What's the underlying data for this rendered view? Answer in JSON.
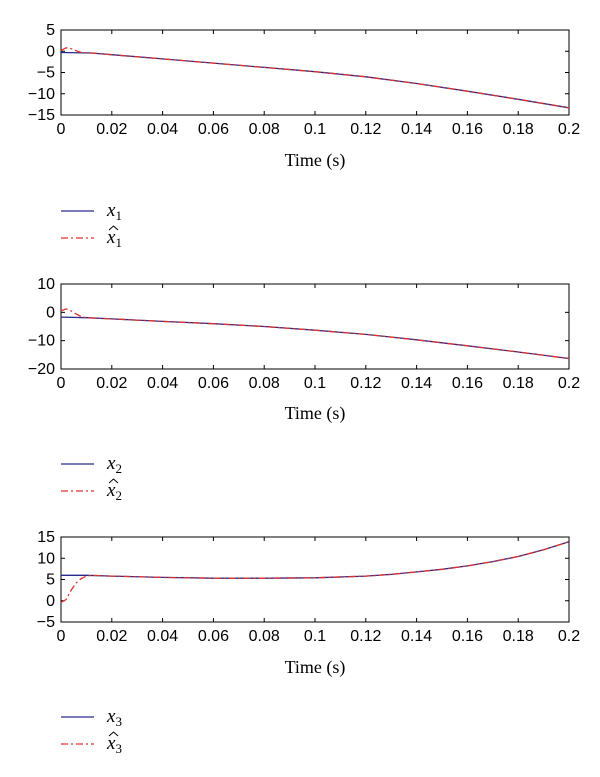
{
  "colors": {
    "true_state": "#2a2a8c",
    "estimate": "#e0302a",
    "axis": "#000000"
  },
  "chart_data": [
    {
      "type": "line",
      "xlabel": "Time (s)",
      "xlim": [
        0,
        0.2
      ],
      "ylim": [
        -15,
        5
      ],
      "xticks": [
        "0",
        "0.02",
        "0.04",
        "0.06",
        "0.08",
        "0.1",
        "0.12",
        "0.14",
        "0.16",
        "0.18",
        "0.2"
      ],
      "yticks": [
        "5",
        "0",
        "−5",
        "−10",
        "−15"
      ],
      "legend_placement": "below",
      "series": [
        {
          "name": "x",
          "subscript": "1",
          "hat": false,
          "style": "solid",
          "x": [
            0,
            0.012,
            0.02,
            0.04,
            0.06,
            0.08,
            0.1,
            0.12,
            0.14,
            0.16,
            0.18,
            0.2
          ],
          "y": [
            -0.3,
            -0.4,
            -0.8,
            -1.8,
            -2.8,
            -3.8,
            -4.8,
            -6.0,
            -7.6,
            -9.4,
            -11.3,
            -13.3
          ]
        },
        {
          "name": "x",
          "subscript": "1",
          "hat": true,
          "style": "dashdot",
          "x": [
            0,
            0.002,
            0.004,
            0.006,
            0.008,
            0.012,
            0.02,
            0.04,
            0.06,
            0.08,
            0.1,
            0.12,
            0.14,
            0.16,
            0.18,
            0.2
          ],
          "y": [
            0.2,
            0.8,
            0.6,
            0.1,
            -0.3,
            -0.4,
            -0.8,
            -1.8,
            -2.8,
            -3.8,
            -4.8,
            -6.0,
            -7.6,
            -9.4,
            -11.3,
            -13.3
          ]
        }
      ]
    },
    {
      "type": "line",
      "xlabel": "Time (s)",
      "xlim": [
        0,
        0.2
      ],
      "ylim": [
        -20,
        10
      ],
      "xticks": [
        "0",
        "0.02",
        "0.04",
        "0.06",
        "0.08",
        "0.1",
        "0.12",
        "0.14",
        "0.16",
        "0.18",
        "0.2"
      ],
      "yticks": [
        "10",
        "0",
        "−10",
        "−20"
      ],
      "legend_placement": "below",
      "series": [
        {
          "name": "x",
          "subscript": "2",
          "hat": false,
          "style": "solid",
          "x": [
            0,
            0.01,
            0.02,
            0.04,
            0.06,
            0.08,
            0.1,
            0.12,
            0.14,
            0.16,
            0.18,
            0.2
          ],
          "y": [
            -1.7,
            -1.9,
            -2.3,
            -3.2,
            -4.0,
            -5.0,
            -6.3,
            -7.8,
            -9.7,
            -11.8,
            -14.0,
            -16.3
          ]
        },
        {
          "name": "x",
          "subscript": "2",
          "hat": true,
          "style": "dashdot",
          "x": [
            0,
            0.002,
            0.004,
            0.006,
            0.008,
            0.01,
            0.02,
            0.04,
            0.06,
            0.08,
            0.1,
            0.12,
            0.14,
            0.16,
            0.18,
            0.2
          ],
          "y": [
            0.5,
            1.2,
            0.5,
            -0.6,
            -1.5,
            -1.9,
            -2.3,
            -3.2,
            -4.0,
            -5.0,
            -6.3,
            -7.8,
            -9.7,
            -11.8,
            -14.0,
            -16.3
          ]
        }
      ]
    },
    {
      "type": "line",
      "xlabel": "Time (s)",
      "xlim": [
        0,
        0.2
      ],
      "ylim": [
        -5,
        15
      ],
      "xticks": [
        "0",
        "0.02",
        "0.04",
        "0.06",
        "0.08",
        "0.1",
        "0.12",
        "0.14",
        "0.16",
        "0.18",
        "0.2"
      ],
      "yticks": [
        "15",
        "10",
        "5",
        "0",
        "−5"
      ],
      "legend_placement": "below",
      "series": [
        {
          "name": "x",
          "subscript": "3",
          "hat": false,
          "style": "solid",
          "x": [
            0,
            0.01,
            0.02,
            0.04,
            0.06,
            0.08,
            0.1,
            0.12,
            0.13,
            0.14,
            0.15,
            0.16,
            0.17,
            0.18,
            0.19,
            0.2
          ],
          "y": [
            6.0,
            6.0,
            5.8,
            5.5,
            5.3,
            5.3,
            5.4,
            5.8,
            6.2,
            6.8,
            7.4,
            8.2,
            9.2,
            10.4,
            12.0,
            13.9
          ]
        },
        {
          "name": "x",
          "subscript": "3",
          "hat": true,
          "style": "dashdot",
          "x": [
            0,
            0.002,
            0.004,
            0.006,
            0.008,
            0.01,
            0.012,
            0.02,
            0.04,
            0.06,
            0.08,
            0.1,
            0.12,
            0.13,
            0.14,
            0.15,
            0.16,
            0.17,
            0.18,
            0.19,
            0.2
          ],
          "y": [
            -0.4,
            0.3,
            2.5,
            4.2,
            5.2,
            5.8,
            6.0,
            5.8,
            5.5,
            5.3,
            5.3,
            5.4,
            5.8,
            6.2,
            6.8,
            7.4,
            8.2,
            9.2,
            10.4,
            12.0,
            13.9
          ]
        }
      ]
    }
  ]
}
